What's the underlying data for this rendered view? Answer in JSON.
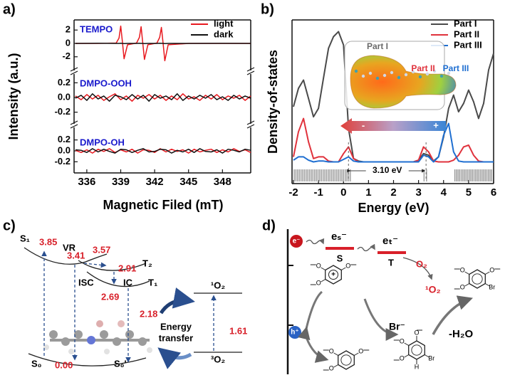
{
  "chart_data": [
    {
      "type": "line",
      "label": "a)",
      "ylabel": "Intensity (a.u.)",
      "xlabel": "Magnetic Filed (mT)",
      "xlim": [
        335,
        350.5
      ],
      "xticks": [
        336,
        339,
        342,
        345,
        348
      ],
      "legend": "upper right",
      "series": [
        {
          "name": "light",
          "color": "#e8191f"
        },
        {
          "name": "dark",
          "color": "#111111"
        }
      ],
      "subplots": [
        {
          "label": "TEMPO",
          "ylim": [
            -3.3,
            3.3
          ],
          "yticks": [
            -2,
            0,
            2
          ],
          "x": [
            335,
            337,
            338.6,
            338.85,
            339.0,
            339.15,
            339.3,
            339.6,
            340.4,
            340.65,
            340.8,
            340.95,
            341.1,
            341.4,
            342.2,
            342.45,
            342.6,
            342.75,
            342.9,
            343.2,
            345,
            348,
            350.5
          ],
          "values": [
            [
              0,
              0,
              0.05,
              0.8,
              2.6,
              0.2,
              -2.3,
              -0.2,
              0.05,
              0.9,
              2.5,
              0.1,
              -2.4,
              -0.2,
              0.05,
              0.9,
              2.4,
              0,
              -2.6,
              -0.2,
              0,
              0,
              0
            ],
            [
              0,
              0.02,
              0,
              0,
              0.03,
              0,
              -0.02,
              0,
              0,
              0.02,
              0,
              0,
              -0.02,
              0,
              0,
              0.02,
              0.01,
              0,
              -0.02,
              0,
              0,
              0.01,
              0
            ]
          ]
        },
        {
          "label": "DMPO-OOH",
          "ylim": [
            -0.3,
            0.3
          ],
          "yticks": [
            -0.2,
            {
              "value": 0,
              "label": "0.0"
            },
            0.2
          ],
          "x": [
            335,
            335.5,
            336,
            336.5,
            337,
            337.5,
            338,
            338.5,
            339,
            339.5,
            340,
            340.5,
            341,
            341.5,
            342,
            342.5,
            343,
            343.5,
            344,
            344.5,
            345,
            345.5,
            346,
            346.5,
            347,
            347.5,
            348,
            348.5,
            349,
            349.5,
            350,
            350.5
          ],
          "values": [
            [
              0.02,
              -0.03,
              0.04,
              -0.02,
              0.03,
              -0.04,
              0.01,
              0.05,
              -0.03,
              0.02,
              -0.05,
              0.03,
              -0.01,
              0.04,
              -0.02,
              0.03,
              -0.04,
              0.02,
              -0.03,
              0.05,
              -0.02,
              0.01,
              -0.04,
              0.03,
              -0.02,
              0.04,
              -0.03,
              0.02,
              -0.01,
              0.03,
              -0.04,
              0.02
            ],
            [
              -0.01,
              0.03,
              -0.04,
              0.05,
              -0.02,
              0.02,
              -0.05,
              0.03,
              0.01,
              -0.03,
              0.04,
              -0.02,
              0.03,
              -0.05,
              0.04,
              -0.01,
              0.02,
              -0.03,
              0.05,
              -0.04,
              0.02,
              -0.02,
              0.03,
              -0.01,
              0.04,
              -0.03,
              0.01,
              -0.04,
              0.03,
              -0.02,
              0.02,
              -0.01
            ]
          ]
        },
        {
          "label": "DMPO-OH",
          "ylim": [
            -0.3,
            0.3
          ],
          "yticks": [
            -0.2,
            {
              "value": 0,
              "label": "0.0"
            },
            0.2
          ],
          "x": [
            335,
            335.5,
            336,
            336.5,
            337,
            337.5,
            338,
            338.5,
            339,
            339.5,
            340,
            340.5,
            341,
            341.5,
            342,
            342.5,
            343,
            343.5,
            344,
            344.5,
            345,
            345.5,
            346,
            346.5,
            347,
            347.5,
            348,
            348.5,
            349,
            349.5,
            350,
            350.5
          ],
          "values": [
            [
              0.01,
              -0.03,
              0.02,
              -0.04,
              0.03,
              -0.01,
              0.04,
              -0.03,
              0.02,
              -0.02,
              0.03,
              -0.04,
              0.02,
              0.01,
              -0.03,
              0.04,
              -0.02,
              0.03,
              -0.01,
              0.02,
              -0.04,
              0.03,
              -0.02,
              0.01,
              0.03,
              -0.03,
              0.02,
              -0.02,
              0.04,
              -0.01,
              0.02,
              -0.03
            ],
            [
              0.02,
              0.01,
              -0.03,
              0.04,
              -0.02,
              0.03,
              -0.01,
              -0.04,
              0.03,
              0.02,
              -0.03,
              0.01,
              0.04,
              -0.02,
              -0.01,
              0.03,
              0.02,
              -0.04,
              0.01,
              -0.02,
              0.03,
              -0.03,
              0.04,
              -0.01,
              -0.02,
              0.02,
              -0.04,
              0.03,
              0.01,
              -0.02,
              0.03,
              0.01
            ]
          ]
        }
      ]
    },
    {
      "type": "line",
      "label": "b)",
      "ylabel": "Density-of-states",
      "xlabel": "Energy (eV)",
      "xlim": [
        -2,
        6
      ],
      "xticks": [
        -2,
        -1,
        0,
        1,
        2,
        3,
        4,
        5,
        6
      ],
      "ylim": [
        -1.3,
        8.5
      ],
      "legend": "upper right",
      "x": [
        -2,
        -1.8,
        -1.6,
        -1.4,
        -1.2,
        -1,
        -0.8,
        -0.6,
        -0.4,
        -0.2,
        0,
        0.2,
        0.4,
        0.6,
        0.8,
        1,
        1.2,
        1.4,
        1.6,
        1.8,
        2,
        2.2,
        2.4,
        2.6,
        2.8,
        3,
        3.2,
        3.4,
        3.6,
        3.8,
        4,
        4.2,
        4.4,
        4.6,
        4.8,
        5,
        5.2,
        5.4,
        5.6,
        5.8,
        6
      ],
      "series": [
        {
          "name": "Part I",
          "color": "#4a4a4a",
          "values": [
            3.3,
            4.4,
            4.9,
            3.8,
            2.7,
            3.2,
            5.0,
            6.8,
            7.5,
            7.8,
            7.0,
            2.0,
            0.2,
            0.05,
            0,
            0,
            0,
            0,
            0,
            0,
            0,
            0,
            0,
            0,
            0,
            0.1,
            0.5,
            0.4,
            0.05,
            0.3,
            1.5,
            3.2,
            4.0,
            3.0,
            3.5,
            4.3,
            3.6,
            2.6,
            3.5,
            5.5,
            6.5
          ]
        },
        {
          "name": "Part II",
          "color": "#e0323c",
          "values": [
            0.3,
            1.8,
            2.6,
            1.2,
            0.2,
            0.3,
            0.3,
            0.05,
            0,
            0,
            0.5,
            0.9,
            0.2,
            0,
            0,
            0,
            0,
            0,
            0,
            0,
            0,
            0,
            0,
            0,
            0,
            0.1,
            0.9,
            0.6,
            0.05,
            0,
            0,
            0,
            0.1,
            0.4,
            0.9,
            1.0,
            0.4,
            0.05,
            0,
            0,
            0
          ]
        },
        {
          "name": "Part III",
          "color": "#1f6fd1",
          "values": [
            0.1,
            0.3,
            0.3,
            0.1,
            0,
            0.05,
            0.05,
            0,
            0,
            0,
            0.15,
            0.3,
            0.05,
            0,
            0,
            0,
            0,
            0,
            0,
            0,
            0,
            0,
            0,
            0,
            0,
            0,
            0.4,
            0.3,
            0,
            0.3,
            1.6,
            2.3,
            0.6,
            0.05,
            0,
            0,
            0,
            0,
            0,
            0,
            0
          ]
        }
      ],
      "gap": {
        "label": "3.10 eV",
        "x": [
          0.2,
          3.3
        ]
      },
      "gradient_labels": [
        "-",
        "+"
      ]
    }
  ],
  "panel_c": {
    "label": "c)",
    "states": {
      "S1": "S₁",
      "T2": "T₂",
      "T1": "T₁",
      "S0": "S₀",
      "S0p": "S₀'"
    },
    "energies": {
      "S1": "3.85",
      "S1_relaxed": "3.41",
      "T2": "3.57",
      "T2_relaxed": "2.91",
      "T1": "2.69",
      "T1_relaxed": "2.18",
      "S0": "0.00",
      "O2": "1.61"
    },
    "processes": {
      "VR": "VR",
      "ISC": "ISC",
      "IC": "IC"
    },
    "energy_transfer": [
      "Energy",
      "transfer"
    ],
    "oxygen": {
      "singlet": "¹O₂",
      "triplet": "³O₂"
    }
  },
  "panel_d": {
    "label": "d)",
    "electron": "e⁻",
    "hole": "h⁺",
    "singlet_electron": "eₛ⁻",
    "singlet": "S",
    "triplet_electron": "eₜ⁻",
    "triplet": "T",
    "oxygen": "O₂",
    "singlet_oxygen": "¹O₂",
    "bromide": "Br⁻",
    "water": "-H₂O",
    "atoms": {
      "oxygen": "O",
      "bromine": "Br",
      "hydrogen": "H",
      "plus": "+"
    }
  }
}
